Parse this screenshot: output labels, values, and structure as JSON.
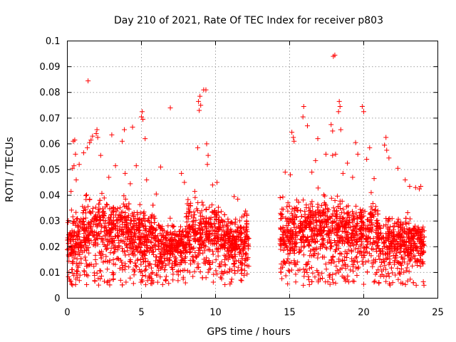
{
  "chart_data": {
    "type": "scatter",
    "title": "Day 210 of 2021, Rate Of TEC Index for receiver p803",
    "xlabel": "GPS time / hours",
    "ylabel": "ROTI / TECUs",
    "xlim": [
      0,
      25
    ],
    "ylim": [
      0,
      0.1
    ],
    "xticks": [
      0,
      5,
      10,
      15,
      20,
      25
    ],
    "xtick_labels": [
      "0",
      "5",
      "10",
      "15",
      "20",
      "25"
    ],
    "yticks": [
      0,
      0.01,
      0.02,
      0.03,
      0.04,
      0.05,
      0.06,
      0.07,
      0.08,
      0.09,
      0.1
    ],
    "ytick_labels": [
      "0",
      "0.01",
      "0.02",
      "0.03",
      "0.04",
      "0.05",
      "0.06",
      "0.07",
      "0.08",
      "0.09",
      "0.1"
    ],
    "grid": true,
    "marker": "+",
    "color": "#ff0000",
    "data_gap_hours": [
      12.25,
      14.35
    ],
    "series": [
      {
        "points": [
          [
            1.4,
            0.0845
          ],
          [
            9.35,
            0.081
          ],
          [
            9.2,
            0.081
          ],
          [
            8.95,
            0.0785
          ],
          [
            8.85,
            0.0765
          ],
          [
            9.0,
            0.075
          ],
          [
            8.9,
            0.073
          ],
          [
            6.95,
            0.074
          ],
          [
            5.05,
            0.0725
          ],
          [
            5.0,
            0.0705
          ],
          [
            5.1,
            0.0695
          ],
          [
            4.4,
            0.0665
          ],
          [
            3.85,
            0.0655
          ],
          [
            3.0,
            0.0635
          ],
          [
            2.0,
            0.0655
          ],
          [
            1.95,
            0.064
          ],
          [
            2.05,
            0.0625
          ],
          [
            1.7,
            0.063
          ],
          [
            1.6,
            0.0615
          ],
          [
            0.5,
            0.0615
          ],
          [
            0.4,
            0.061
          ],
          [
            1.35,
            0.0585
          ],
          [
            1.5,
            0.0605
          ],
          [
            3.7,
            0.061
          ],
          [
            5.25,
            0.062
          ],
          [
            8.8,
            0.0585
          ],
          [
            9.4,
            0.06
          ],
          [
            0.45,
            0.0515
          ],
          [
            0.35,
            0.0505
          ],
          [
            0.55,
            0.056
          ],
          [
            18.05,
            0.0945
          ],
          [
            17.95,
            0.094
          ],
          [
            18.35,
            0.0765
          ],
          [
            18.4,
            0.0745
          ],
          [
            18.3,
            0.0725
          ],
          [
            19.9,
            0.0745
          ],
          [
            20.0,
            0.0725
          ],
          [
            15.95,
            0.0745
          ],
          [
            15.9,
            0.0705
          ],
          [
            16.9,
            0.062
          ],
          [
            17.8,
            0.0675
          ],
          [
            17.9,
            0.065
          ],
          [
            18.45,
            0.0655
          ],
          [
            21.5,
            0.0625
          ],
          [
            21.4,
            0.0595
          ],
          [
            21.55,
            0.0575
          ],
          [
            20.4,
            0.0585
          ],
          [
            15.15,
            0.0645
          ],
          [
            15.25,
            0.0625
          ],
          [
            15.3,
            0.061
          ],
          [
            16.2,
            0.067
          ],
          [
            17.45,
            0.056
          ],
          [
            18.1,
            0.056
          ],
          [
            19.45,
            0.0605
          ],
          [
            19.6,
            0.056
          ],
          [
            21.7,
            0.0545
          ],
          [
            22.3,
            0.0505
          ],
          [
            23.85,
            0.0435
          ],
          [
            23.75,
            0.0425
          ],
          [
            23.5,
            0.043
          ],
          [
            17.9,
            0.0555
          ],
          [
            18.9,
            0.0525
          ],
          [
            20.2,
            0.054
          ],
          [
            16.75,
            0.0535
          ],
          [
            9.5,
            0.0555
          ],
          [
            9.45,
            0.052
          ],
          [
            10.1,
            0.045
          ],
          [
            9.8,
            0.044
          ],
          [
            11.25,
            0.0395
          ],
          [
            11.5,
            0.0385
          ],
          [
            7.7,
            0.0485
          ],
          [
            4.65,
            0.0515
          ],
          [
            2.25,
            0.0555
          ],
          [
            1.1,
            0.0565
          ],
          [
            0.8,
            0.052
          ],
          [
            0.25,
            0.0415
          ],
          [
            3.25,
            0.0515
          ],
          [
            6.3,
            0.051
          ],
          [
            5.35,
            0.046
          ],
          [
            7.9,
            0.045
          ],
          [
            8.6,
            0.0415
          ],
          [
            6.0,
            0.0405
          ],
          [
            3.9,
            0.0485
          ],
          [
            4.25,
            0.0445
          ],
          [
            2.8,
            0.047
          ],
          [
            0.6,
            0.046
          ],
          [
            14.7,
            0.049
          ],
          [
            15.05,
            0.048
          ],
          [
            16.5,
            0.049
          ],
          [
            18.6,
            0.0485
          ],
          [
            19.25,
            0.047
          ],
          [
            20.7,
            0.0465
          ],
          [
            22.8,
            0.046
          ],
          [
            23.1,
            0.0435
          ]
        ]
      }
    ]
  }
}
